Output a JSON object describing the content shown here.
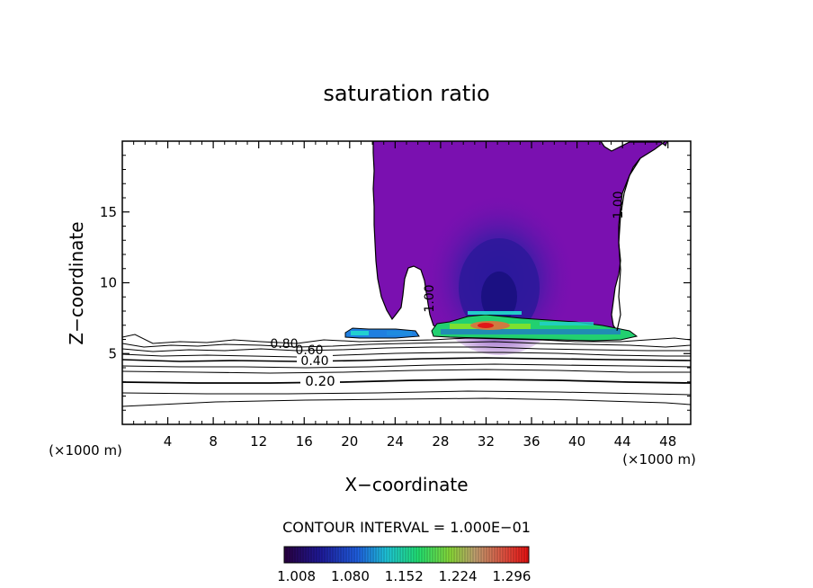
{
  "chart_data": {
    "type": "contour",
    "title": "saturation ratio",
    "xlabel": "X−coordinate",
    "ylabel": "Z−coordinate",
    "x_unit_left": "(×1000 m)",
    "x_unit_right": "(×1000 m)",
    "xlim": [
      0,
      50
    ],
    "ylim": [
      0,
      20
    ],
    "x_ticks": [
      "4",
      "8",
      "12",
      "16",
      "20",
      "24",
      "28",
      "32",
      "36",
      "40",
      "44",
      "48"
    ],
    "y_ticks": [
      "5",
      "10",
      "15"
    ],
    "contour_interval_text": "CONTOUR INTERVAL = 1.000E−01",
    "contour_labels": [
      "0.20",
      "0.40",
      "0.60",
      "0.80",
      "1.00",
      "1.00"
    ],
    "colorbar": {
      "ticks": [
        "1.008",
        "1.080",
        "1.152",
        "1.224",
        "1.296"
      ],
      "colors": [
        "#2a0040",
        "#1e1690",
        "#1f3fd0",
        "#1e8be0",
        "#22d0d0",
        "#22e070",
        "#7de030",
        "#d0c050",
        "#e06040",
        "#e01818"
      ]
    },
    "fill_color": "#7a10b0",
    "grid": false
  }
}
